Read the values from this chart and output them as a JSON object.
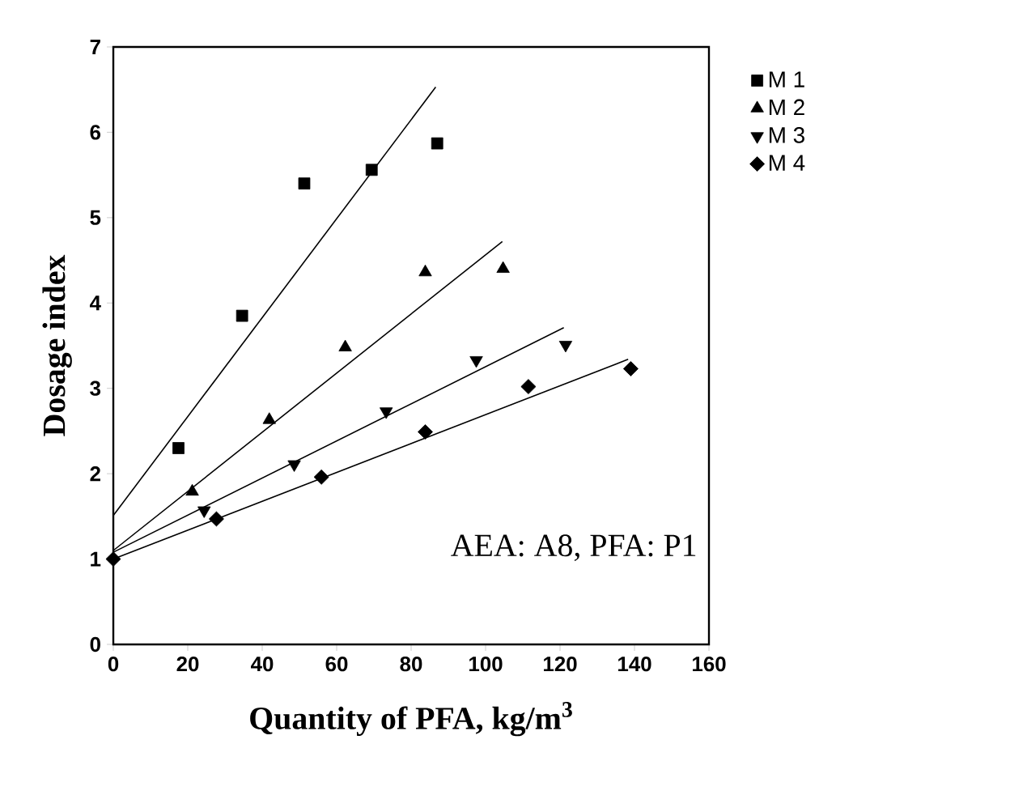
{
  "chart_data": {
    "type": "scatter",
    "xlabel": "Quantity of PFA, kg/m$^{3}$",
    "ylabel": "Dosage index",
    "xlim": [
      0,
      160
    ],
    "ylim": [
      0,
      7
    ],
    "xticks": [
      0,
      20,
      40,
      60,
      80,
      100,
      120,
      140,
      160
    ],
    "yticks": [
      0,
      1,
      2,
      3,
      4,
      5,
      6,
      7
    ],
    "grid": false,
    "legend": "right",
    "annotations": [
      "AEA: A8,  PFA: P1"
    ],
    "series": [
      {
        "name": "M 1",
        "color": "#000000",
        "marker": "square",
        "x": [
          17.5,
          34.6,
          51.3,
          69.4,
          87.0
        ],
        "values": [
          2.3,
          3.85,
          5.4,
          5.56,
          5.87
        ]
      },
      {
        "name": "M 2",
        "color": "#000000",
        "marker": "triangle",
        "x": [
          21.2,
          41.9,
          62.3,
          83.8,
          104.7
        ],
        "values": [
          1.79,
          2.63,
          3.48,
          4.36,
          4.4
        ]
      },
      {
        "name": "M 3",
        "color": "#000000",
        "marker": "triangle down",
        "x": [
          24.4,
          48.6,
          73.3,
          97.5,
          121.5
        ],
        "values": [
          1.57,
          2.11,
          2.73,
          3.33,
          3.51
        ]
      },
      {
        "name": "M 4",
        "color": "#000000",
        "marker": "diamond",
        "x": [
          0,
          27.7,
          55.9,
          83.8,
          111.5,
          139.0
        ],
        "values": [
          1.0,
          1.47,
          1.96,
          2.49,
          3.02,
          3.23
        ]
      },
      {
        "type": "line",
        "color": "#000000",
        "marker": "none",
        "line_style": "solid",
        "x": [
          0,
          86.6
        ],
        "values": [
          1.51,
          6.53
        ]
      },
      {
        "type": "line",
        "color": "#000000",
        "marker": "none",
        "line_style": "solid",
        "x": [
          0,
          104.5
        ],
        "values": [
          1.1,
          4.72
        ]
      },
      {
        "type": "line",
        "color": "#000000",
        "marker": "none",
        "line_style": "solid",
        "x": [
          0,
          121.0
        ],
        "values": [
          1.08,
          3.71
        ]
      },
      {
        "type": "line",
        "color": "#000000",
        "marker": "none",
        "line_style": "solid",
        "x": [
          0,
          138.3
        ],
        "values": [
          1.0,
          3.34
        ]
      }
    ]
  }
}
